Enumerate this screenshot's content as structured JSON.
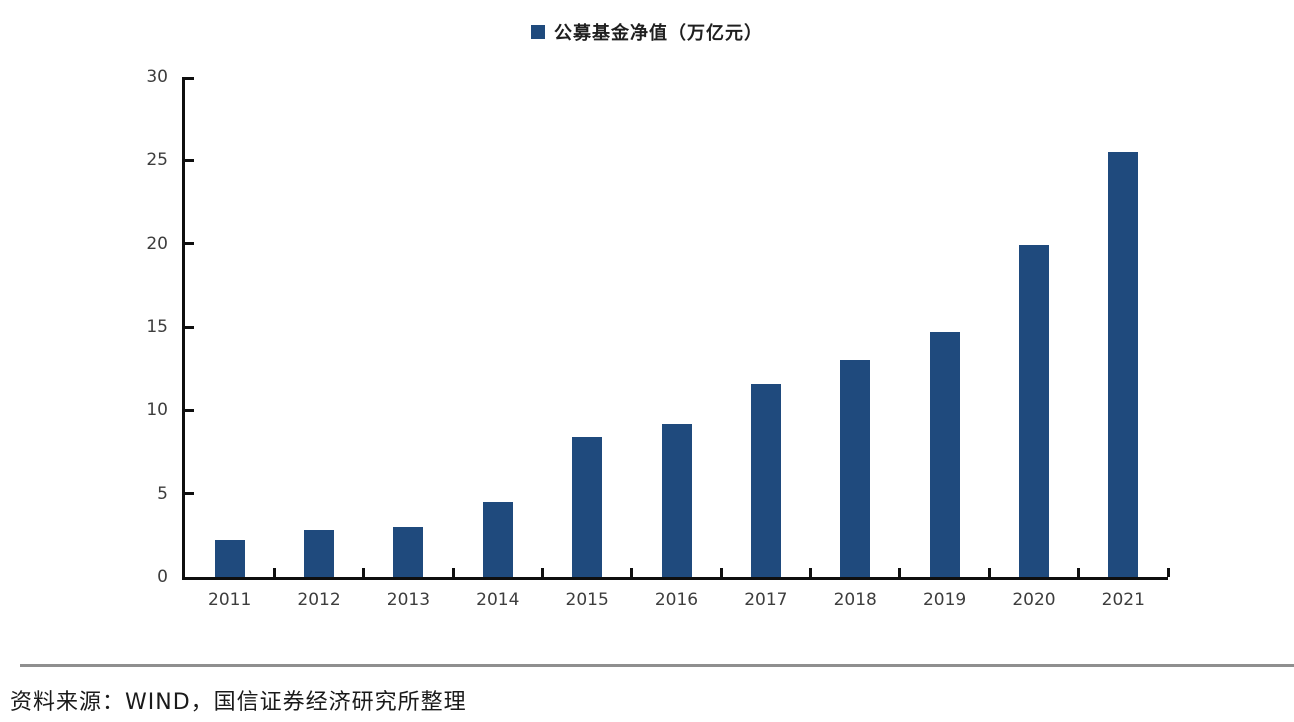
{
  "chart_data": {
    "type": "bar",
    "title": "",
    "legend_label": "公募基金净值（万亿元）",
    "legend_position": "top-center",
    "categories": [
      "2011",
      "2012",
      "2013",
      "2014",
      "2015",
      "2016",
      "2017",
      "2018",
      "2019",
      "2020",
      "2021"
    ],
    "series": [
      {
        "name": "公募基金净值（万亿元）",
        "values": [
          2.2,
          2.8,
          3.0,
          4.5,
          8.4,
          9.2,
          11.6,
          13.0,
          14.7,
          19.9,
          25.5
        ]
      }
    ],
    "xlabel": "",
    "ylabel": "",
    "ylim": [
      0,
      30
    ],
    "yticks": [
      0,
      5,
      10,
      15,
      20,
      25,
      30
    ],
    "grid": false
  },
  "footer": {
    "source_text": "资料来源：WIND，国信证券经济研究所整理"
  },
  "colors": {
    "bar": "#1F4A7D",
    "axis": "#0f0f0f",
    "tick_label": "#3d3d3d",
    "legend_text": "#1f1f1f",
    "divider": "#8f8f8f",
    "background": "#ffffff"
  }
}
